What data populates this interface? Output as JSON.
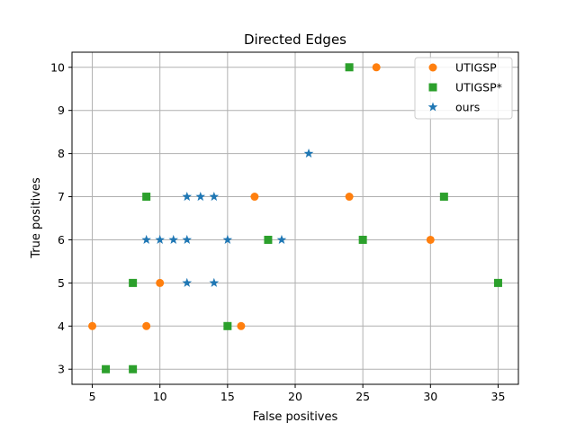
{
  "chart_data": {
    "type": "scatter",
    "title": "Directed Edges",
    "xlabel": "False positives",
    "ylabel": "True positives",
    "xlim": [
      3.5,
      36.5
    ],
    "ylim": [
      2.65,
      10.35
    ],
    "xticks": [
      5,
      10,
      15,
      20,
      25,
      30,
      35
    ],
    "yticks": [
      3,
      4,
      5,
      6,
      7,
      8,
      9,
      10
    ],
    "grid": true,
    "legend_position": "top-right",
    "series": [
      {
        "name": "UTIGSP",
        "marker": "circle",
        "color": "#ff7f0e",
        "points": [
          [
            5,
            4
          ],
          [
            9,
            4
          ],
          [
            10,
            5
          ],
          [
            16,
            4
          ],
          [
            17,
            7
          ],
          [
            24,
            7
          ],
          [
            26,
            10
          ],
          [
            30,
            6
          ]
        ]
      },
      {
        "name": "UTIGSP*",
        "marker": "square",
        "color": "#2ca02c",
        "points": [
          [
            6,
            3
          ],
          [
            8,
            3
          ],
          [
            8,
            5
          ],
          [
            9,
            7
          ],
          [
            15,
            4
          ],
          [
            18,
            6
          ],
          [
            24,
            10
          ],
          [
            25,
            6
          ],
          [
            31,
            7
          ],
          [
            35,
            5
          ]
        ]
      },
      {
        "name": "ours",
        "marker": "star",
        "color": "#1f77b4",
        "points": [
          [
            9,
            6
          ],
          [
            10,
            6
          ],
          [
            11,
            6
          ],
          [
            12,
            6
          ],
          [
            12,
            7
          ],
          [
            12,
            5
          ],
          [
            13,
            7
          ],
          [
            14,
            7
          ],
          [
            14,
            5
          ],
          [
            15,
            6
          ],
          [
            19,
            6
          ],
          [
            21,
            8
          ]
        ]
      }
    ]
  }
}
